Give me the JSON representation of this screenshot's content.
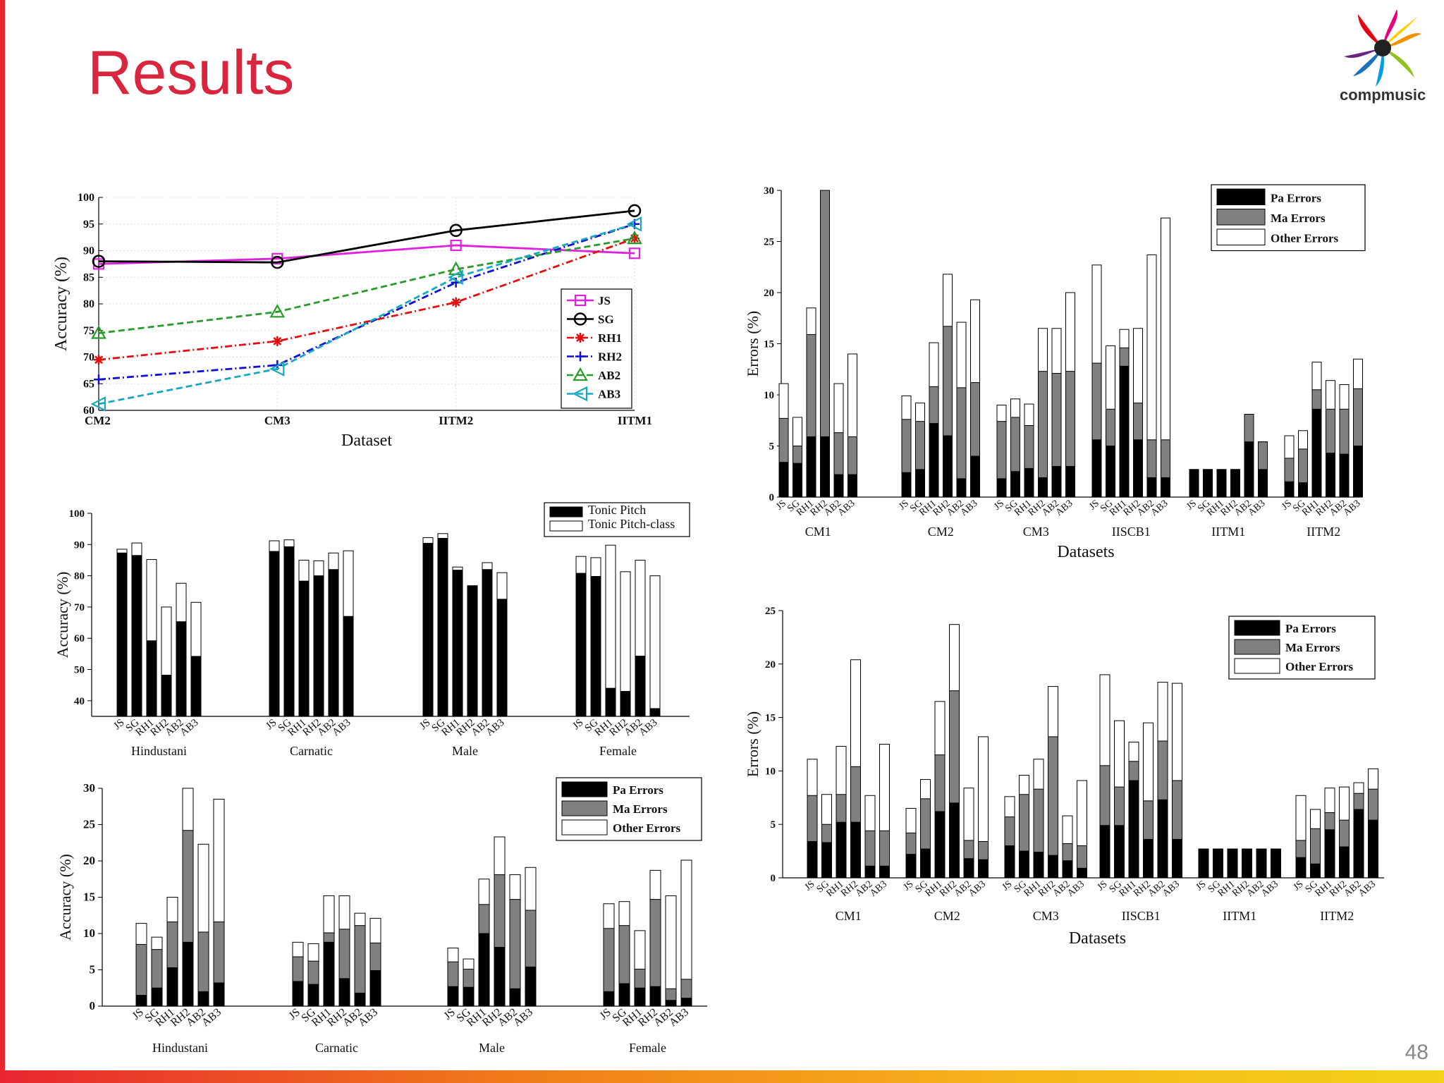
{
  "slide": {
    "title": "Results",
    "page_number": "48",
    "logo_text": "compmusic",
    "title_color": "#d7263d",
    "accent_color": "#e8262f"
  },
  "colors": {
    "pa_errors": "#000000",
    "ma_errors": "#808080",
    "other_errors": "#ffffff",
    "tonic_pitch": "#000000",
    "tonic_pitch_class": "#ffffff"
  },
  "chart_data": [
    {
      "id": "accuracy-line",
      "type": "line",
      "categories": [
        "CM2",
        "CM3",
        "IITM2",
        "IITM1"
      ],
      "xlabel": "Dataset",
      "ylabel": "Accuracy (%)",
      "ylim": [
        60,
        100
      ],
      "yticks": [
        60,
        65,
        70,
        75,
        80,
        85,
        90,
        95,
        100
      ],
      "grid": true,
      "legend_position": "lower-right",
      "series": [
        {
          "name": "JS",
          "color": "#e020e0",
          "marker": "square",
          "dash": "solid",
          "values": [
            87.5,
            88.5,
            91,
            89.5
          ]
        },
        {
          "name": "SG",
          "color": "#000000",
          "marker": "circle",
          "dash": "solid",
          "values": [
            88,
            87.8,
            93.8,
            97.5
          ]
        },
        {
          "name": "RH1",
          "color": "#e01010",
          "marker": "star",
          "dash": "dashdot",
          "values": [
            69.5,
            73,
            80.3,
            92.3
          ]
        },
        {
          "name": "RH2",
          "color": "#1010d0",
          "marker": "plus",
          "dash": "dashdot",
          "values": [
            65.8,
            68.5,
            84,
            95
          ]
        },
        {
          "name": "AB2",
          "color": "#2a9a2a",
          "marker": "triangle",
          "dash": "dashed",
          "values": [
            74.5,
            78.5,
            86.5,
            92.3
          ]
        },
        {
          "name": "AB3",
          "color": "#18a8c0",
          "marker": "triangle-left",
          "dash": "dashed",
          "values": [
            61.2,
            67.8,
            85,
            95
          ]
        }
      ]
    },
    {
      "id": "tonic-accuracy",
      "type": "bar",
      "stacked": true,
      "ylabel": "Accuracy (%)",
      "ylim": [
        35,
        100
      ],
      "yticks": [
        40,
        50,
        60,
        70,
        80,
        90,
        100
      ],
      "legend_position": "top-right",
      "bar_labels": [
        "JS",
        "SG",
        "RH1",
        "RH2",
        "AB2",
        "AB3"
      ],
      "components": [
        "Tonic Pitch",
        "Tonic Pitch-class"
      ],
      "groups": [
        {
          "name": "Hindustani",
          "pitch": [
            87.3,
            86.5,
            59.2,
            48.2,
            65.3,
            54.2
          ],
          "pitch_class": [
            88.5,
            90.5,
            85.2,
            70,
            77.6,
            71.5
          ]
        },
        {
          "name": "Carnatic",
          "pitch": [
            87.8,
            89.3,
            78.3,
            80,
            82,
            67
          ],
          "pitch_class": [
            91.2,
            91.5,
            85,
            84.8,
            87.3,
            88
          ]
        },
        {
          "name": "Male",
          "pitch": [
            90.4,
            92,
            81.8,
            76.8,
            82,
            72.5
          ],
          "pitch_class": [
            92.2,
            93.5,
            82.8,
            76.8,
            84.2,
            81
          ]
        },
        {
          "name": "Female",
          "pitch": [
            80.8,
            79.8,
            44,
            43,
            54.3,
            37.5
          ],
          "pitch_class": [
            86.2,
            85.8,
            89.8,
            81.3,
            85,
            80
          ]
        }
      ]
    },
    {
      "id": "error-breakdown-groups",
      "type": "bar",
      "stacked": true,
      "ylabel": "Accuracy (%)",
      "ylim": [
        0,
        30
      ],
      "yticks": [
        0,
        5,
        10,
        15,
        20,
        25,
        30
      ],
      "legend_position": "top-right",
      "bar_labels": [
        "JS",
        "SG",
        "RH1",
        "RH2",
        "AB2",
        "AB3"
      ],
      "components": [
        "Pa Errors",
        "Ma Errors",
        "Other Errors"
      ],
      "groups": [
        {
          "name": "Hindustani",
          "pa": [
            1.5,
            2.5,
            5.3,
            8.8,
            2,
            3.2
          ],
          "ma": [
            7,
            5.3,
            6.3,
            15.4,
            8.2,
            8.4
          ],
          "other": [
            2.9,
            1.7,
            3.4,
            5.8,
            12.1,
            16.9
          ]
        },
        {
          "name": "Carnatic",
          "pa": [
            3.4,
            3,
            8.8,
            3.8,
            1.8,
            4.9
          ],
          "ma": [
            3.4,
            3.2,
            1.3,
            6.8,
            9.3,
            3.8
          ],
          "other": [
            2,
            2.4,
            5.1,
            4.6,
            1.7,
            3.4
          ]
        },
        {
          "name": "Male",
          "pa": [
            2.7,
            2.6,
            10,
            8.1,
            2.4,
            5.4
          ],
          "ma": [
            3.4,
            2.5,
            4,
            10,
            12.3,
            7.8
          ],
          "other": [
            1.9,
            1.4,
            3.5,
            5.2,
            3.4,
            5.9
          ]
        },
        {
          "name": "Female",
          "pa": [
            2,
            3.1,
            2.5,
            2.7,
            0.8,
            1.1
          ],
          "ma": [
            8.7,
            8,
            2.6,
            12,
            1.6,
            2.6
          ],
          "other": [
            3.4,
            3.3,
            5.3,
            4,
            12.8,
            16.4
          ]
        }
      ]
    },
    {
      "id": "errors-datasets-top",
      "type": "bar",
      "stacked": true,
      "xlabel": "Datasets",
      "ylabel": "Errors (%)",
      "ylim": [
        0,
        30
      ],
      "yticks": [
        0,
        5,
        10,
        15,
        20,
        25,
        30
      ],
      "legend_position": "top-right",
      "bar_labels": [
        "JS",
        "SG",
        "RH1",
        "RH2",
        "AB2",
        "AB3"
      ],
      "components": [
        "Pa Errors",
        "Ma Errors",
        "Other Errors"
      ],
      "groups": [
        {
          "name": "CM1",
          "pa": [
            3.4,
            3.3,
            5.9,
            5.9,
            2.2,
            2.2
          ],
          "ma": [
            4.3,
            1.7,
            10,
            24.1,
            4.1,
            3.7
          ],
          "other": [
            3.4,
            2.8,
            2.6,
            0,
            4.8,
            8.1
          ]
        },
        {
          "name": "CM2",
          "pa": [
            2.4,
            2.7,
            7.2,
            6,
            1.8,
            4
          ],
          "ma": [
            5.2,
            4.7,
            3.6,
            10.7,
            8.9,
            7.2
          ],
          "other": [
            2.3,
            1.8,
            4.3,
            5.1,
            6.4,
            8.1
          ]
        },
        {
          "name": "CM3",
          "pa": [
            1.8,
            2.5,
            2.8,
            1.9,
            3,
            3
          ],
          "ma": [
            5.6,
            5.3,
            4.2,
            10.4,
            9.1,
            9.3
          ],
          "other": [
            1.6,
            1.8,
            2.1,
            4.2,
            4.4,
            7.7
          ]
        },
        {
          "name": "IISCB1",
          "pa": [
            5.6,
            5,
            12.8,
            5.6,
            1.9,
            1.9
          ],
          "ma": [
            7.5,
            3.6,
            1.8,
            3.6,
            3.7,
            3.7
          ],
          "other": [
            9.6,
            6.2,
            1.8,
            7.3,
            18.1,
            21.7
          ]
        },
        {
          "name": "IITM1",
          "pa": [
            2.7,
            2.7,
            2.7,
            2.7,
            5.4,
            2.7
          ],
          "ma": [
            0,
            0,
            0,
            0,
            2.7,
            2.7
          ],
          "other": [
            0,
            0,
            0,
            0,
            0,
            0
          ]
        },
        {
          "name": "IITM2",
          "pa": [
            1.5,
            1.4,
            8.6,
            4.3,
            4.2,
            5
          ],
          "ma": [
            2.3,
            3.3,
            1.9,
            4.3,
            4.4,
            5.6
          ],
          "other": [
            2.2,
            1.8,
            2.7,
            2.8,
            2.4,
            2.9
          ]
        }
      ]
    },
    {
      "id": "errors-datasets-bottom",
      "type": "bar",
      "stacked": true,
      "xlabel": "Datasets",
      "ylabel": "Errors (%)",
      "ylim": [
        0,
        25
      ],
      "yticks": [
        0,
        5,
        10,
        15,
        20,
        25
      ],
      "legend_position": "top-right",
      "bar_labels": [
        "JS",
        "SG",
        "RH1",
        "RH2",
        "AB2",
        "AB3"
      ],
      "components": [
        "Pa Errors",
        "Ma Errors",
        "Other Errors"
      ],
      "groups": [
        {
          "name": "CM1",
          "pa": [
            3.4,
            3.3,
            5.2,
            5.2,
            1.1,
            1.1
          ],
          "ma": [
            4.3,
            1.7,
            2.6,
            5.2,
            3.3,
            3.3
          ],
          "other": [
            3.4,
            2.8,
            4.5,
            10,
            3.3,
            8.1
          ]
        },
        {
          "name": "CM2",
          "pa": [
            2.2,
            2.7,
            6.2,
            7,
            1.8,
            1.7
          ],
          "ma": [
            2,
            4.7,
            5.3,
            10.5,
            1.7,
            1.7
          ],
          "other": [
            2.3,
            1.8,
            5,
            6.2,
            4.9,
            9.8
          ]
        },
        {
          "name": "CM3",
          "pa": [
            3,
            2.5,
            2.4,
            2.1,
            1.6,
            0.9
          ],
          "ma": [
            2.7,
            5.3,
            5.9,
            11.1,
            1.6,
            2.1
          ],
          "other": [
            1.9,
            1.8,
            2.8,
            4.7,
            2.6,
            6.1
          ]
        },
        {
          "name": "IISCB1",
          "pa": [
            4.9,
            4.9,
            9.1,
            3.6,
            7.3,
            3.6
          ],
          "ma": [
            5.6,
            3.6,
            1.8,
            3.6,
            5.5,
            5.5
          ],
          "other": [
            8.5,
            6.2,
            1.8,
            7.3,
            5.5,
            9.1
          ]
        },
        {
          "name": "IITM1",
          "pa": [
            2.7,
            2.7,
            2.7,
            2.7,
            2.7,
            2.7
          ],
          "ma": [
            0,
            0,
            0,
            0,
            0,
            0
          ],
          "other": [
            0,
            0,
            0,
            0,
            0,
            0
          ]
        },
        {
          "name": "IITM2",
          "pa": [
            1.9,
            1.3,
            4.5,
            2.9,
            6.4,
            5.4
          ],
          "ma": [
            1.6,
            3.3,
            1.6,
            2.5,
            1.5,
            2.9
          ],
          "other": [
            4.2,
            1.8,
            2.3,
            3.1,
            1,
            1.9
          ]
        }
      ]
    }
  ]
}
